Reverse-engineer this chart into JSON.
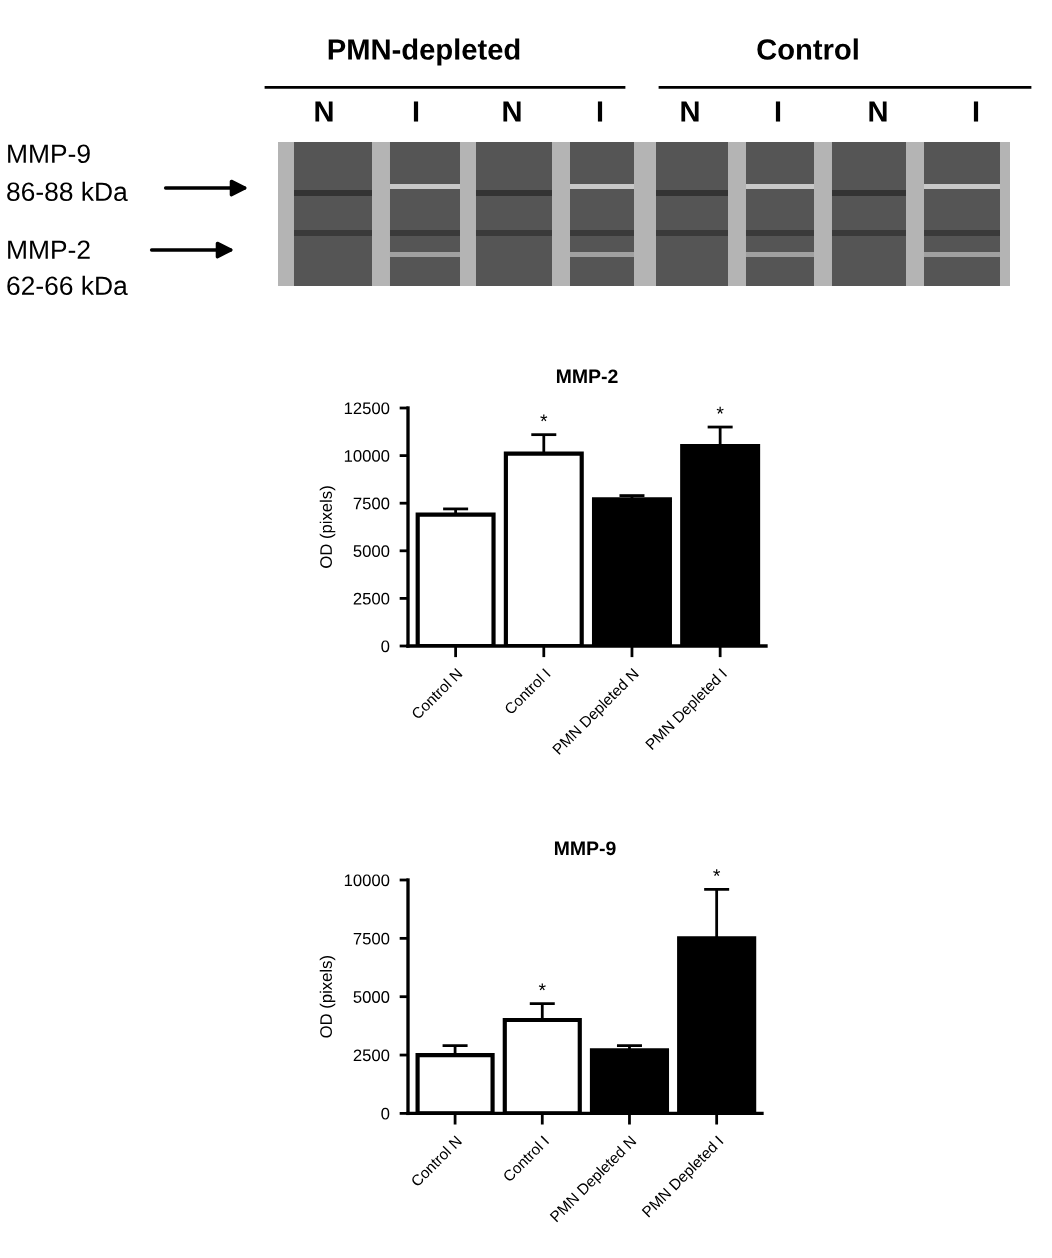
{
  "chart_data": [
    {
      "type": "other",
      "annotations": [
        "PMN-depleted",
        "Control",
        "N",
        "I",
        "N",
        "I",
        "N",
        "I",
        "N",
        "I",
        "MMP-9",
        "86-88 kDa",
        "MMP-2",
        "62-66 kDa"
      ]
    },
    {
      "type": "bar",
      "title": "MMP-2",
      "ylabel": "OD (pixels)",
      "categories": [
        "Control N",
        "Control I",
        "PMN Depleted N",
        "PMN Depleted I"
      ],
      "values": [
        6900,
        10100,
        7700,
        10500
      ],
      "colors": [
        "#ffffff",
        "#ffffff",
        "#000000",
        "#000000"
      ],
      "errors": [
        [
          6900,
          7200
        ],
        [
          10100,
          11100
        ],
        [
          7700,
          7900
        ],
        [
          10500,
          11500
        ]
      ],
      "ylim": [
        0,
        12500
      ],
      "yticks": [
        0,
        2500,
        5000,
        7500,
        10000,
        12500
      ],
      "annotations": [
        {
          "text": "*",
          "x": "Control I",
          "y": 11100
        },
        {
          "text": "*",
          "x": "PMN Depleted I",
          "y": 11500
        }
      ]
    },
    {
      "type": "bar",
      "title": "MMP-9",
      "ylabel": "OD (pixels)",
      "categories": [
        "Control N",
        "Control I",
        "PMN Depleted N",
        "PMN Depleted I"
      ],
      "values": [
        2500,
        4000,
        2700,
        7500
      ],
      "colors": [
        "#ffffff",
        "#ffffff",
        "#000000",
        "#000000"
      ],
      "errors": [
        [
          2500,
          2900
        ],
        [
          4000,
          4700
        ],
        [
          2700,
          2900
        ],
        [
          7500,
          9600
        ]
      ],
      "ylim": [
        0,
        10000
      ],
      "yticks": [
        0,
        2500,
        5000,
        7500,
        10000
      ],
      "annotations": [
        {
          "text": "*",
          "x": "Control I",
          "y": 4700
        },
        {
          "text": "*",
          "x": "PMN Depleted I",
          "y": 9600
        }
      ]
    }
  ]
}
